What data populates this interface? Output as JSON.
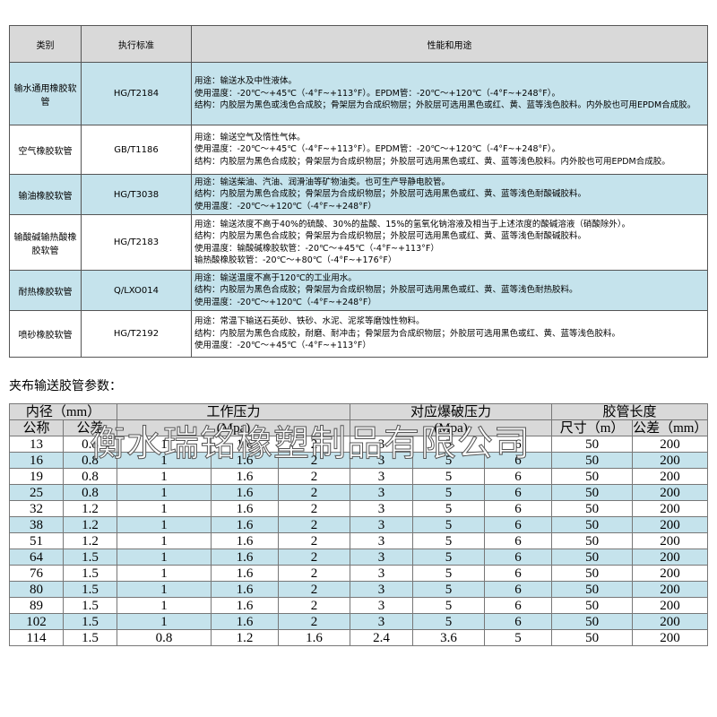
{
  "table1": {
    "headers": [
      "类别",
      "执行标准",
      "性能和用途"
    ],
    "rows": [
      {
        "category": "输水通用橡胶软管",
        "standard": "HG/T2184",
        "lines": [
          "用途：输送水及中性液体。",
          "使用温度：-20℃～+45℃（-4°F~+113°F）。EPDM管：-20℃～+120℃（-4°F~+248°F）。",
          "结构：内胶层为黑色或浅色合成胶；骨架层为合成织物层；外胶层可选用黑色或红、黄、蓝等浅色胶料。内外胶也可用EPDM合成胶。"
        ]
      },
      {
        "category": "空气橡胶软管",
        "standard": "GB/T1186",
        "lines": [
          "用途：输送空气及惰性气体。",
          "使用温度：-20℃～+45℃（-4°F~+113°F）。EPDM管：-20℃～+120℃（-4°F~+248°F）。",
          "结构：内胶层为黑色合成胶；骨架层为合成织物层；外胶层可选用黑色或红、黄、蓝等浅色胶料。内外胶也可用EPDM合成胶。"
        ]
      },
      {
        "category": "输油橡胶软管",
        "standard": "HG/T3038",
        "lines": [
          "用途：输送柴油、汽油、润滑油等矿物油类。也可生产导静电胶管。",
          "结构：内胶层为黑色合成胶；骨架层为合成织物层；外胶层可选用黑色或红、黄、蓝等浅色耐酸碱胶料。",
          "使用温度：-20℃～+120℃（-4°F~+248°F）"
        ]
      },
      {
        "category": "输酸碱输热酸橡胶软管",
        "standard": "HG/T2183",
        "lines": [
          "用途：输送浓度不高于40%的硫酸、30%的盐酸、15%的氢氧化钠溶液及相当于上述浓度的酸碱溶液（硝酸除外）。",
          "结构：内胶层为黑色合成胶；骨架层为合成织物层；外胶层可选用黑色或红、黄、蓝等浅色耐酸碱胶料。",
          "使用温度：输酸碱橡胶软管：-20℃～+45℃（-4°F~+113°F）",
          "输热酸橡胶软管：-20℃～+80℃（-4°F~+176°F）"
        ]
      },
      {
        "category": "耐热橡胶软管",
        "standard": "Q/LXO014",
        "lines": [
          "用途：输送温度不高于120℃的工业用水。",
          "结构：内胶层为黑色合成胶；骨架层为合成织物层；外胶层可选用黑色或红、黄、蓝等浅色耐热胶料。",
          "使用温度：-20℃～+120℃（-4°F~+248°F）"
        ]
      },
      {
        "category": "喷砂橡胶软管",
        "standard": "HG/T2192",
        "lines": [
          "用途：常温下输送石英砂、铁砂、水泥、泥浆等磨蚀性物料。",
          "结构：内胶层为黑色合成胶，耐磨、耐冲击；骨架层为合成织物层；外胶层可选用黑色或红、黄、蓝等浅色胶料。",
          "使用温度：-20℃～+45℃（-4°F~+113°F）"
        ]
      }
    ]
  },
  "table2": {
    "title": "夹布输送胶管参数：",
    "groups": [
      "内径（mm）",
      "工作压力",
      "对应爆破压力",
      "胶管长度"
    ],
    "subheaders": [
      "公称",
      "公差",
      "(Mpa)",
      "(Mpa)",
      "尺寸（m）",
      "公差（mm）"
    ],
    "rows": [
      [
        "13",
        "0.8",
        "1",
        "1.6",
        "2",
        "3",
        "5",
        "6",
        "50",
        "200"
      ],
      [
        "16",
        "0.8",
        "1",
        "1.6",
        "2",
        "3",
        "5",
        "6",
        "50",
        "200"
      ],
      [
        "19",
        "0.8",
        "1",
        "1.6",
        "2",
        "3",
        "5",
        "6",
        "50",
        "200"
      ],
      [
        "25",
        "0.8",
        "1",
        "1.6",
        "2",
        "3",
        "5",
        "6",
        "50",
        "200"
      ],
      [
        "32",
        "1.2",
        "1",
        "1.6",
        "2",
        "3",
        "5",
        "6",
        "50",
        "200"
      ],
      [
        "38",
        "1.2",
        "1",
        "1.6",
        "2",
        "3",
        "5",
        "6",
        "50",
        "200"
      ],
      [
        "51",
        "1.2",
        "1",
        "1.6",
        "2",
        "3",
        "5",
        "6",
        "50",
        "200"
      ],
      [
        "64",
        "1.5",
        "1",
        "1.6",
        "2",
        "3",
        "5",
        "6",
        "50",
        "200"
      ],
      [
        "76",
        "1.5",
        "1",
        "1.6",
        "2",
        "3",
        "5",
        "6",
        "50",
        "200"
      ],
      [
        "80",
        "1.5",
        "1",
        "1.6",
        "2",
        "3",
        "5",
        "6",
        "50",
        "200"
      ],
      [
        "89",
        "1.5",
        "1",
        "1.6",
        "2",
        "3",
        "5",
        "6",
        "50",
        "200"
      ],
      [
        "102",
        "1.5",
        "1",
        "1.6",
        "2",
        "3",
        "5",
        "6",
        "50",
        "200"
      ],
      [
        "114",
        "1.5",
        "0.8",
        "1.2",
        "1.6",
        "2.4",
        "3.6",
        "5",
        "50",
        "200"
      ]
    ]
  },
  "watermark": "衡水瑞铭橡塑制品有限公司"
}
